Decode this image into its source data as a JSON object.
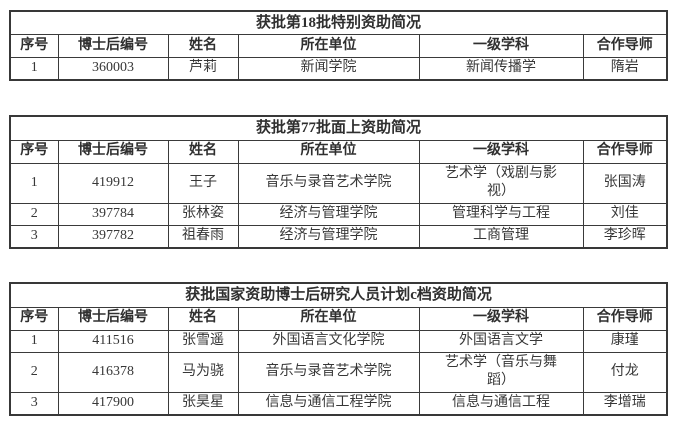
{
  "columns": [
    "序号",
    "博士后编号",
    "姓名",
    "所在单位",
    "一级学科",
    "合作导师"
  ],
  "tables": [
    {
      "title": "获批第18批特别资助简况",
      "rows": [
        [
          "1",
          "360003",
          "芦莉",
          "新闻学院",
          "新闻传播学",
          "隋岩"
        ]
      ]
    },
    {
      "title": "获批第77批面上资助简况",
      "rows": [
        [
          "1",
          "419912",
          "王子",
          "音乐与录音艺术学院",
          "艺术学（戏剧与影\n视）",
          "张国涛"
        ],
        [
          "2",
          "397784",
          "张林姿",
          "经济与管理学院",
          "管理科学与工程",
          "刘佳"
        ],
        [
          "3",
          "397782",
          "祖春雨",
          "经济与管理学院",
          "工商管理",
          "李珍晖"
        ]
      ]
    },
    {
      "title": "获批国家资助博士后研究人员计划c档资助简况",
      "rows": [
        [
          "1",
          "411516",
          "张雪遥",
          "外国语言文化学院",
          "外国语言文学",
          "康瑾"
        ],
        [
          "2",
          "416378",
          "马为骁",
          "音乐与录音艺术学院",
          "艺术学（音乐与舞\n蹈）",
          "付龙"
        ],
        [
          "3",
          "417900",
          "张昊星",
          "信息与通信工程学院",
          "信息与通信工程",
          "李增瑞"
        ]
      ]
    }
  ]
}
